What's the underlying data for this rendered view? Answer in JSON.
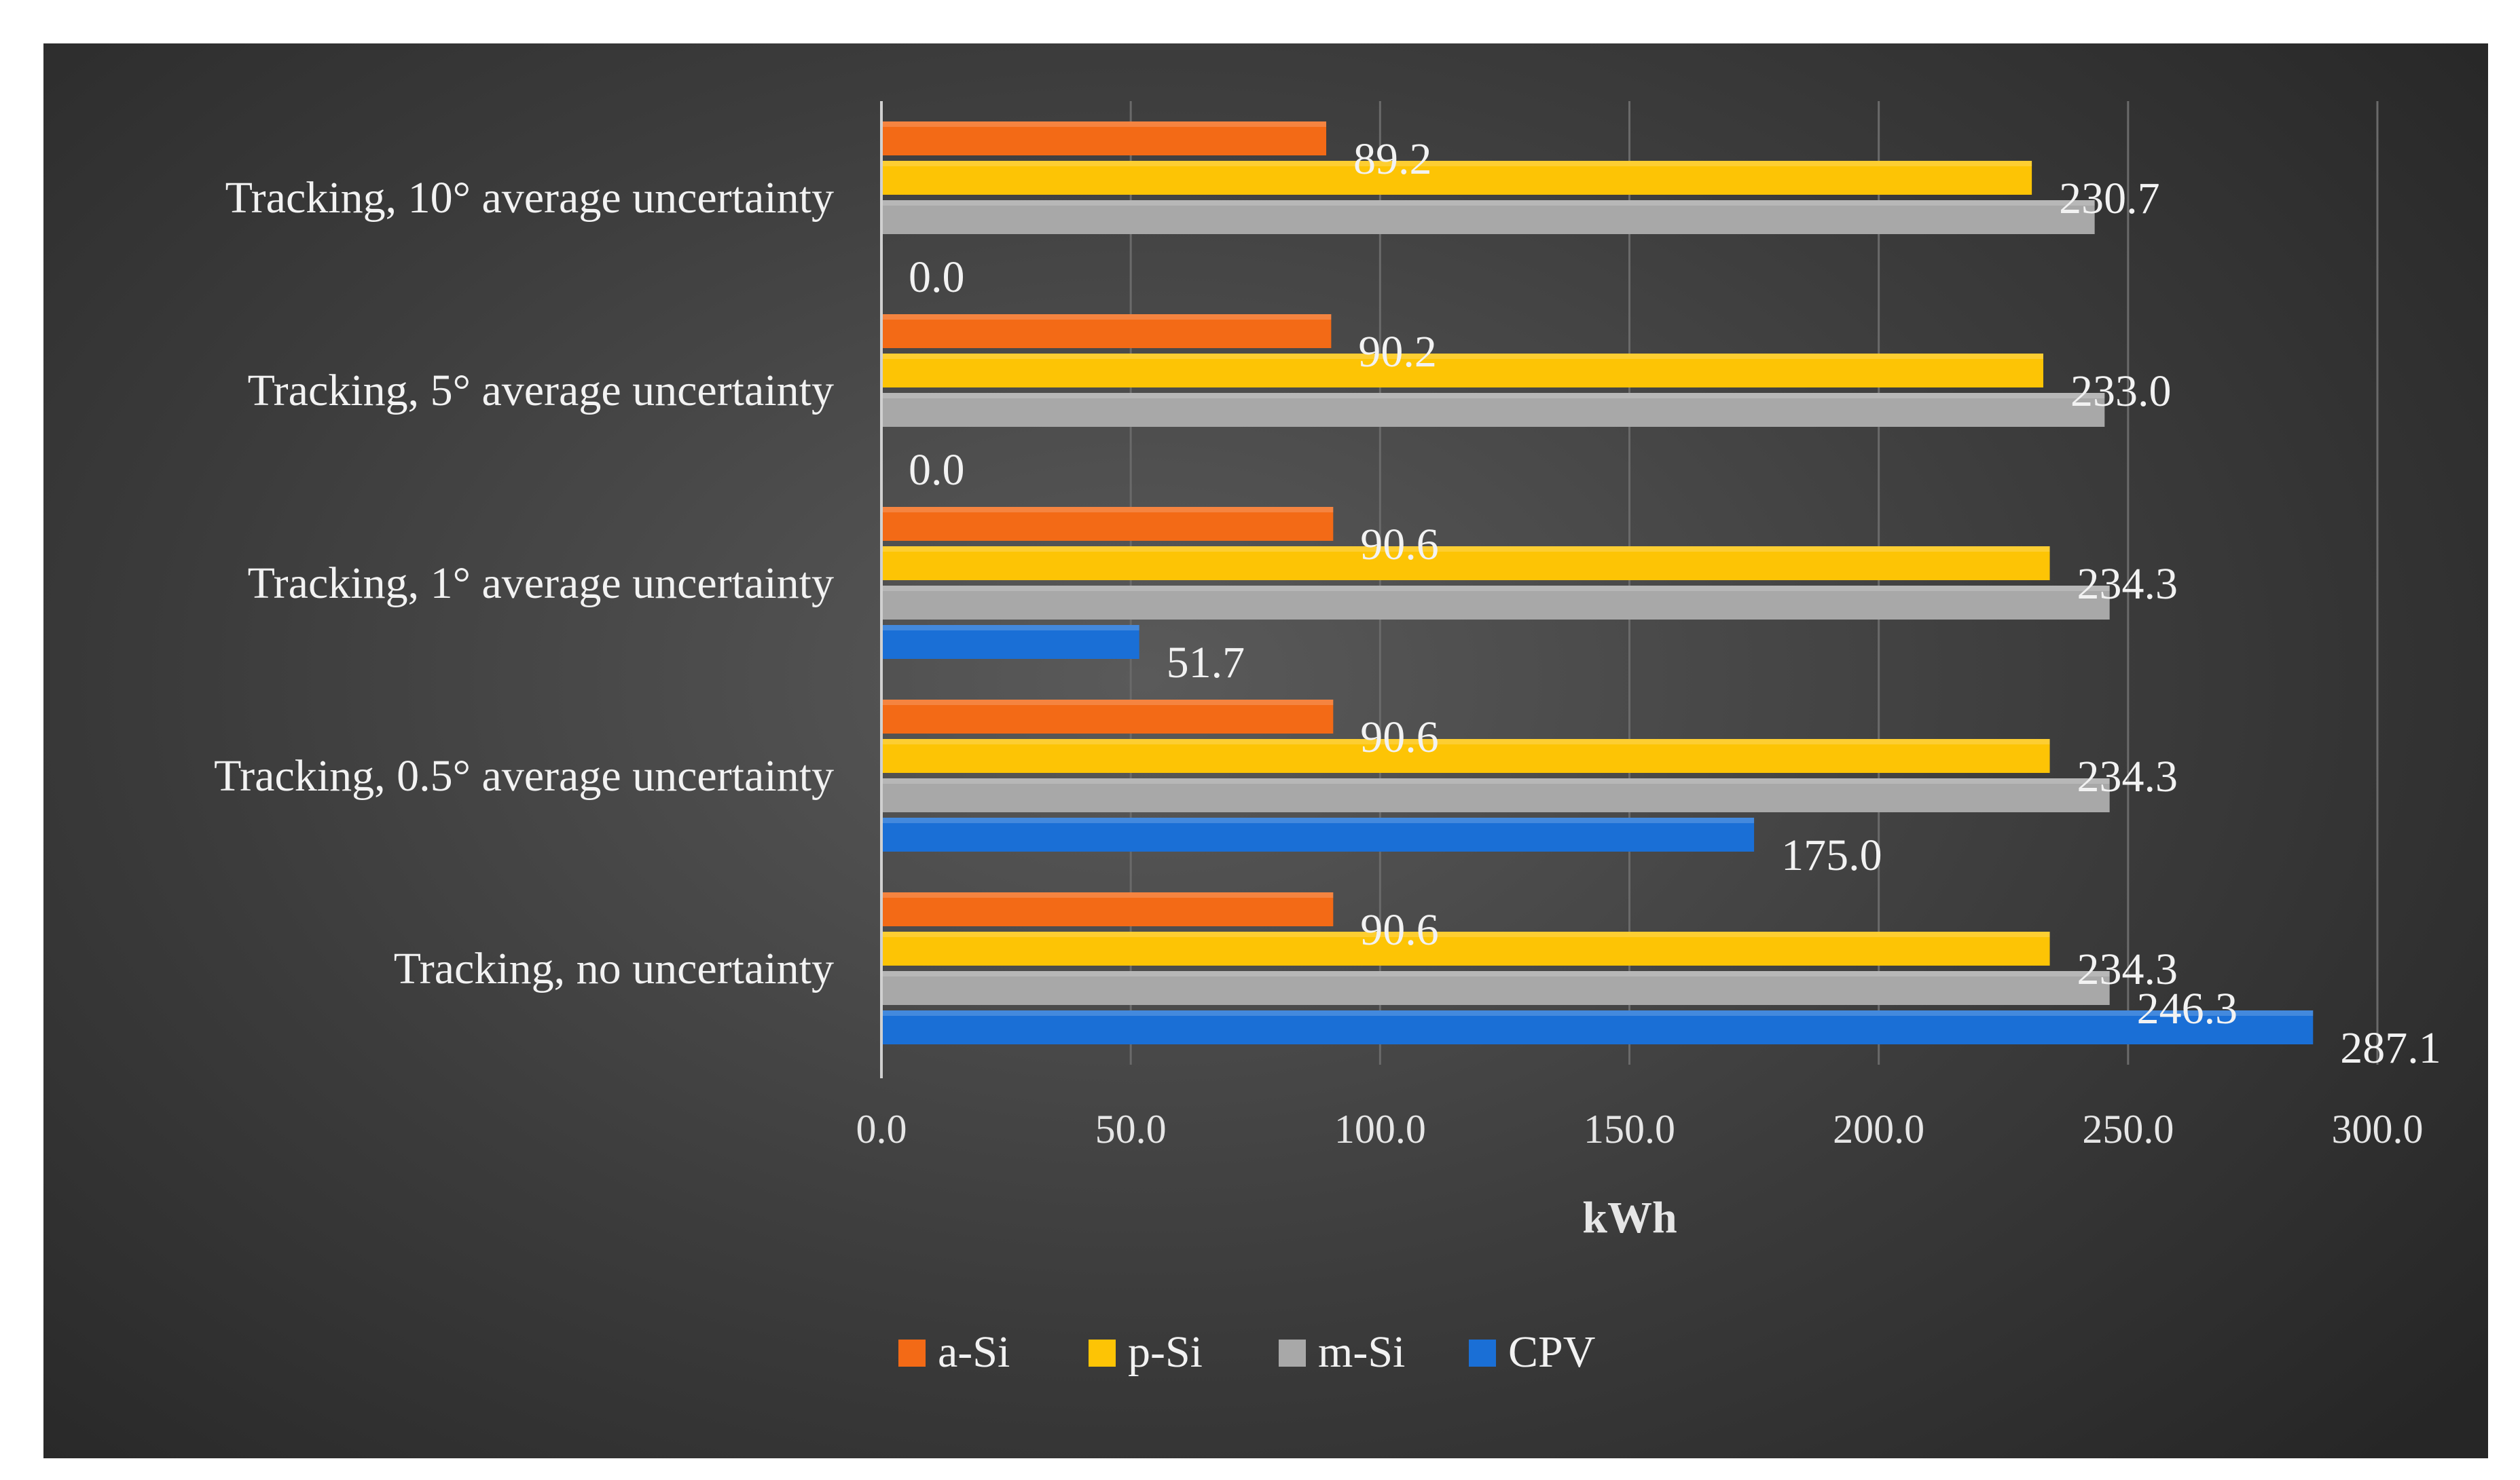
{
  "chart_data": {
    "type": "bar",
    "orientation": "horizontal",
    "title": "",
    "xlabel": "kWh",
    "ylabel": "",
    "xlim": [
      0,
      300
    ],
    "xticks": [
      "0.0",
      "50.0",
      "100.0",
      "150.0",
      "200.0",
      "250.0",
      "300.0"
    ],
    "xtick_values": [
      0,
      50,
      100,
      150,
      200,
      250,
      300
    ],
    "grid": true,
    "legend_position": "bottom",
    "categories": [
      "Tracking, 10° average uncertainty",
      "Tracking, 5° average uncertainty",
      "Tracking, 1° average uncertainty",
      "Tracking, 0.5° average uncertainty",
      "Tracking, no uncertainty"
    ],
    "series": [
      {
        "name": "a-Si",
        "color": "#f36a16",
        "values": [
          89.2,
          90.2,
          90.6,
          90.6,
          90.6
        ],
        "labels": [
          "89.2",
          "90.2",
          "90.6",
          "90.6",
          "90.6"
        ]
      },
      {
        "name": "p-Si",
        "color": "#fdc405",
        "values": [
          230.7,
          233.0,
          234.3,
          234.3,
          234.3
        ],
        "labels": [
          "230.7",
          "233.0",
          "234.3",
          "234.3",
          "234.3"
        ]
      },
      {
        "name": "m-Si",
        "color": "#a8a8a8",
        "values": [
          243.3,
          245.3,
          246.3,
          246.3,
          246.3
        ],
        "labels": [
          "",
          "",
          "",
          "",
          "246.3"
        ]
      },
      {
        "name": "CPV",
        "color": "#1a6fd6",
        "values": [
          0.0,
          0.0,
          51.7,
          175.0,
          287.1
        ],
        "labels": [
          "0.0",
          "0.0",
          "51.7",
          "175.0",
          "287.1"
        ]
      }
    ]
  }
}
